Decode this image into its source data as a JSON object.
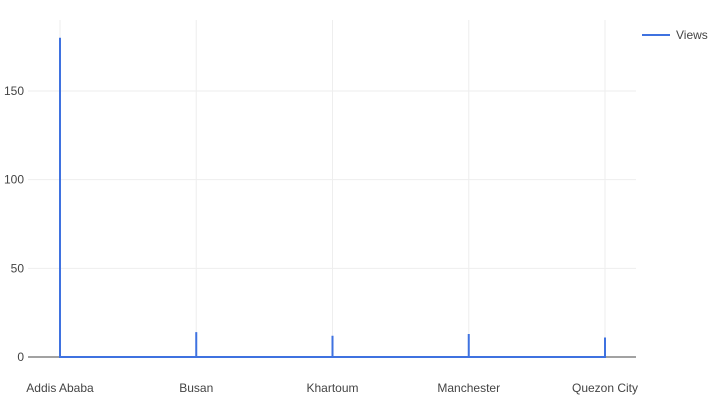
{
  "chart_data": {
    "type": "line",
    "title": "",
    "xlabel": "",
    "ylabel": "",
    "categories": [
      "Addis Ababa",
      "Busan",
      "Khartoum",
      "Manchester",
      "Quezon City"
    ],
    "series": [
      {
        "name": "Views",
        "color": "#3f72e0",
        "x": [
          "Addis Ababa",
          "Addis Ababa",
          "Addis Ababa",
          "Busan",
          "Busan",
          "Busan",
          "Khartoum",
          "Khartoum",
          "Khartoum",
          "Manchester",
          "Manchester",
          "Manchester",
          "Quezon City",
          "Quezon City",
          "Quezon City"
        ],
        "values": [
          0,
          180,
          0,
          0,
          14,
          0,
          0,
          12,
          0,
          0,
          13,
          0,
          0,
          11,
          0
        ]
      }
    ],
    "ylim": [
      0,
      190
    ],
    "yticks": [
      0,
      50,
      100,
      150
    ],
    "grid": true,
    "legend_position": "top-right"
  }
}
